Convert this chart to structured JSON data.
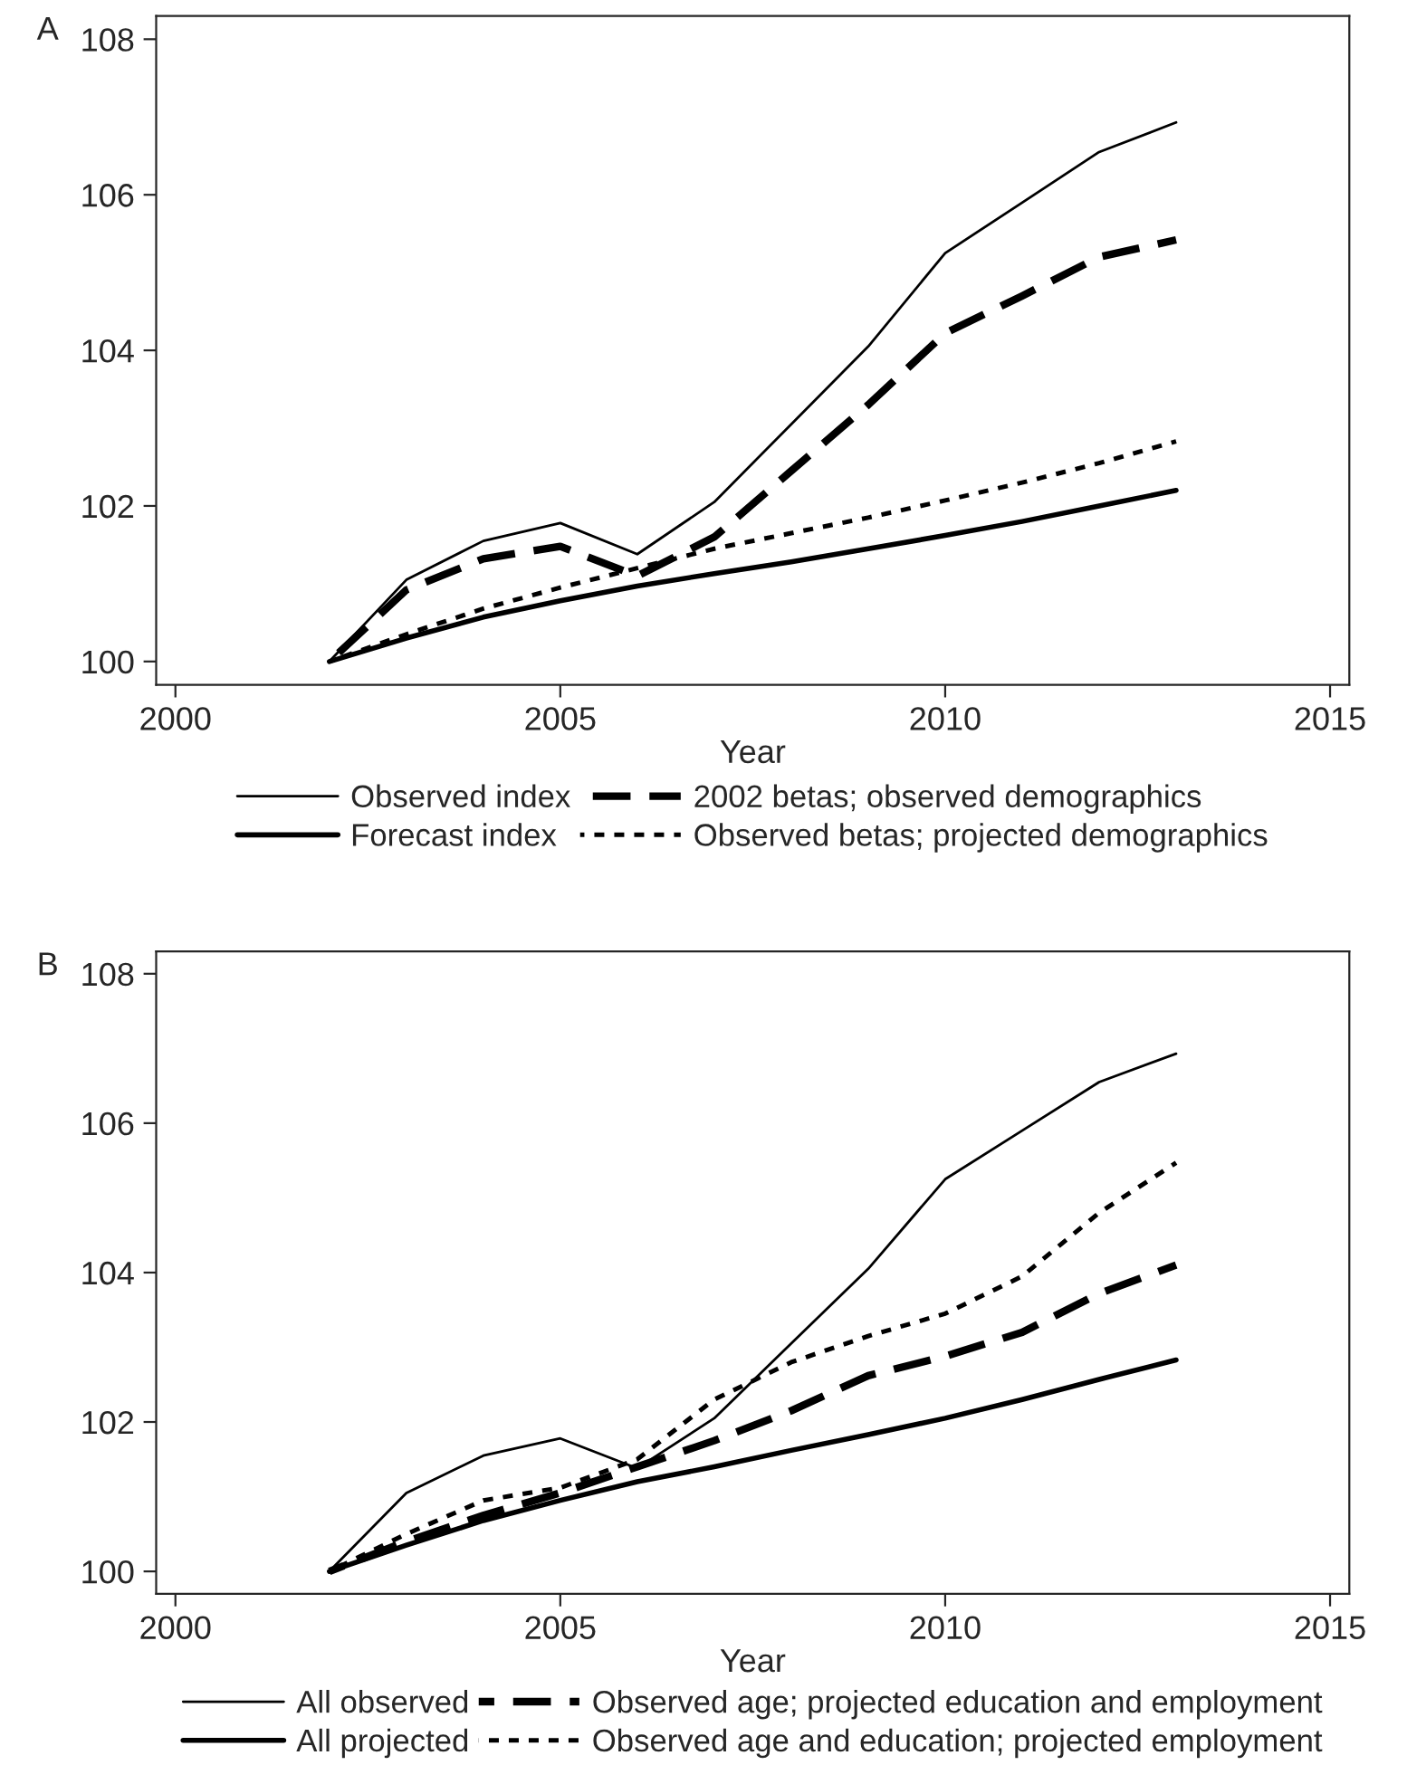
{
  "chart_data": [
    {
      "type": "line",
      "xlabel": "Year",
      "annotations": [
        "A"
      ],
      "x": [
        2002,
        2003,
        2004,
        2005,
        2006,
        2007,
        2008,
        2009,
        2010,
        2011,
        2012,
        2013
      ],
      "series": [
        {
          "name": "Observed index",
          "color": "#000000",
          "line_style": "solid",
          "values": [
            100,
            101.05,
            101.55,
            101.78,
            101.38,
            102.05,
            103.05,
            104.05,
            105.25,
            105.9,
            106.55,
            106.93
          ]
        },
        {
          "name": "Forecast index",
          "color": "#000000",
          "line_style": "solid",
          "values": [
            100,
            100.3,
            100.57,
            100.78,
            100.97,
            101.13,
            101.28,
            101.45,
            101.62,
            101.8,
            102.0,
            102.2
          ]
        },
        {
          "name": "2002 betas; observed demographics",
          "color": "#000000",
          "line_style": "dashed",
          "values": [
            100,
            100.92,
            101.32,
            101.48,
            101.1,
            101.6,
            102.45,
            103.3,
            104.22,
            104.7,
            105.2,
            105.42
          ]
        },
        {
          "name": "Observed betas; projected demographics",
          "color": "#000000",
          "line_style": "dotted",
          "values": [
            100,
            100.35,
            100.68,
            100.95,
            101.2,
            101.45,
            101.65,
            101.85,
            102.07,
            102.3,
            102.55,
            102.83
          ]
        }
      ],
      "xlim": [
        1999.75,
        2015.25
      ],
      "xticks": [
        2000,
        2005,
        2010,
        2015
      ],
      "ylim": [
        99.7,
        108.3
      ],
      "yticks": [
        100,
        102,
        104,
        106,
        108
      ],
      "grid": false,
      "legend": "bottom"
    },
    {
      "type": "line",
      "xlabel": "Year",
      "annotations": [
        "B"
      ],
      "x": [
        2002,
        2003,
        2004,
        2005,
        2006,
        2007,
        2008,
        2009,
        2010,
        2011,
        2012,
        2013
      ],
      "series": [
        {
          "name": "All observed",
          "color": "#000000",
          "line_style": "solid",
          "values": [
            100,
            101.05,
            101.55,
            101.78,
            101.38,
            102.05,
            103.05,
            104.05,
            105.25,
            105.9,
            106.55,
            106.93
          ]
        },
        {
          "name": "All projected",
          "color": "#000000",
          "line_style": "solid",
          "values": [
            100,
            100.35,
            100.68,
            100.95,
            101.2,
            101.4,
            101.62,
            101.83,
            102.05,
            102.3,
            102.57,
            102.83
          ]
        },
        {
          "name": "Observed age; projected education and employment",
          "color": "#000000",
          "line_style": "dashed",
          "values": [
            100,
            100.4,
            100.75,
            101.05,
            101.4,
            101.75,
            102.15,
            102.62,
            102.88,
            103.2,
            103.72,
            104.1
          ]
        },
        {
          "name": "Observed age and education; projected employment",
          "color": "#000000",
          "line_style": "dotted",
          "values": [
            100,
            100.5,
            100.95,
            101.12,
            101.5,
            102.3,
            102.8,
            103.15,
            103.45,
            103.95,
            104.8,
            105.47
          ]
        }
      ],
      "xlim": [
        1999.75,
        2015.25
      ],
      "xticks": [
        2000,
        2005,
        2010,
        2015
      ],
      "ylim": [
        99.7,
        108.3
      ],
      "yticks": [
        100,
        102,
        104,
        106,
        108
      ],
      "grid": false,
      "legend": "bottom"
    }
  ]
}
